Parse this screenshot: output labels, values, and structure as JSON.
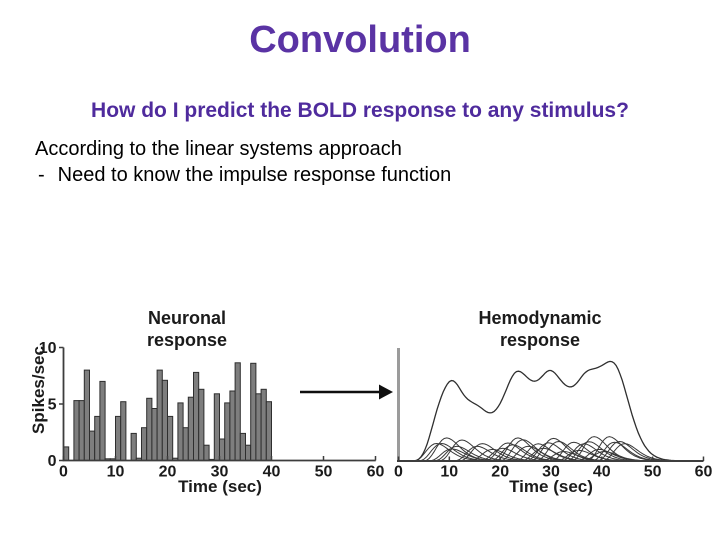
{
  "slide": {
    "title": "Convolution",
    "subtitle": "How do I predict the BOLD response to any stimulus?",
    "body_line1": "According to the linear systems approach",
    "bullet": {
      "marker": "-",
      "text": "Need to know the impulse response function"
    }
  },
  "colors": {
    "background": "#ffffff",
    "title": "#5a33a4",
    "subtitle": "#4f2b9d",
    "body": "#000000",
    "chart_text": "#1b1b1b",
    "bar_fill": "#7e7e7e",
    "bar_stroke": "#2e2e2e",
    "axis": "#3d3d3d",
    "right_axis": "#9b9b9b",
    "curve": "#383838",
    "sum_curve": "#2f2f2f",
    "arrow": "#0f0f0f"
  },
  "chart_data": [
    {
      "type": "bar",
      "title": "Neuronal response",
      "title_lines": [
        "Neuronal",
        "response"
      ],
      "xlabel": "Time (sec)",
      "ylabel": "Spikes/sec",
      "xlim": [
        0,
        60
      ],
      "ylim": [
        0,
        10
      ],
      "x_ticks": [
        0,
        10,
        20,
        30,
        40,
        50,
        60
      ],
      "y_ticks": [
        0,
        5,
        10
      ],
      "bin_width_sec": 1,
      "bin_start_sec": 0,
      "values": [
        1.2,
        0,
        5.3,
        5.3,
        8.0,
        2.6,
        3.9,
        7.0,
        0.15,
        0.15,
        3.9,
        5.2,
        0,
        2.4,
        0.2,
        2.9,
        5.5,
        4.6,
        8.0,
        7.1,
        3.9,
        0.2,
        5.1,
        2.9,
        5.6,
        7.8,
        6.3,
        1.35,
        0.1,
        5.9,
        1.9,
        5.1,
        6.15,
        8.65,
        2.4,
        1.35,
        8.6,
        5.9,
        6.3,
        5.2
      ],
      "grid": false,
      "legend": false
    },
    {
      "type": "line",
      "title": "Hemodynamic response",
      "title_lines": [
        "Hemodynamic",
        "response"
      ],
      "xlabel": "Time (sec)",
      "ylabel": "",
      "xlim": [
        0,
        60
      ],
      "ylim": [
        0,
        1
      ],
      "x_ticks": [
        0,
        10,
        20,
        30,
        40,
        50,
        60
      ],
      "y_ticks": [],
      "grid": false,
      "legend": false,
      "hrf": {
        "peak_time": 5.5,
        "shape": 6,
        "duration": 22
      },
      "kernels": [
        {
          "t": 2,
          "a": 0.155
        },
        {
          "t": 3,
          "a": 0.155
        },
        {
          "t": 4,
          "a": 0.204
        },
        {
          "t": 5,
          "a": 0.107
        },
        {
          "t": 6,
          "a": 0.13
        },
        {
          "t": 7,
          "a": 0.186
        },
        {
          "t": 10,
          "a": 0.13
        },
        {
          "t": 11,
          "a": 0.154
        },
        {
          "t": 13,
          "a": 0.103
        },
        {
          "t": 15,
          "a": 0.112
        },
        {
          "t": 16,
          "a": 0.159
        },
        {
          "t": 17,
          "a": 0.143
        },
        {
          "t": 18,
          "a": 0.204
        },
        {
          "t": 19,
          "a": 0.188
        },
        {
          "t": 20,
          "a": 0.13
        },
        {
          "t": 22,
          "a": 0.152
        },
        {
          "t": 23,
          "a": 0.112
        },
        {
          "t": 24,
          "a": 0.161
        },
        {
          "t": 25,
          "a": 0.2
        },
        {
          "t": 26,
          "a": 0.173
        },
        {
          "t": 27,
          "a": 0.084
        },
        {
          "t": 29,
          "a": 0.166
        },
        {
          "t": 30,
          "a": 0.094
        },
        {
          "t": 31,
          "a": 0.152
        },
        {
          "t": 32,
          "a": 0.171
        },
        {
          "t": 33,
          "a": 0.216
        },
        {
          "t": 34,
          "a": 0.103
        },
        {
          "t": 35,
          "a": 0.084
        },
        {
          "t": 36,
          "a": 0.215
        },
        {
          "t": 37,
          "a": 0.166
        },
        {
          "t": 38,
          "a": 0.173
        },
        {
          "t": 39,
          "a": 0.154
        }
      ],
      "sum_curve": "sum of kernels"
    }
  ]
}
